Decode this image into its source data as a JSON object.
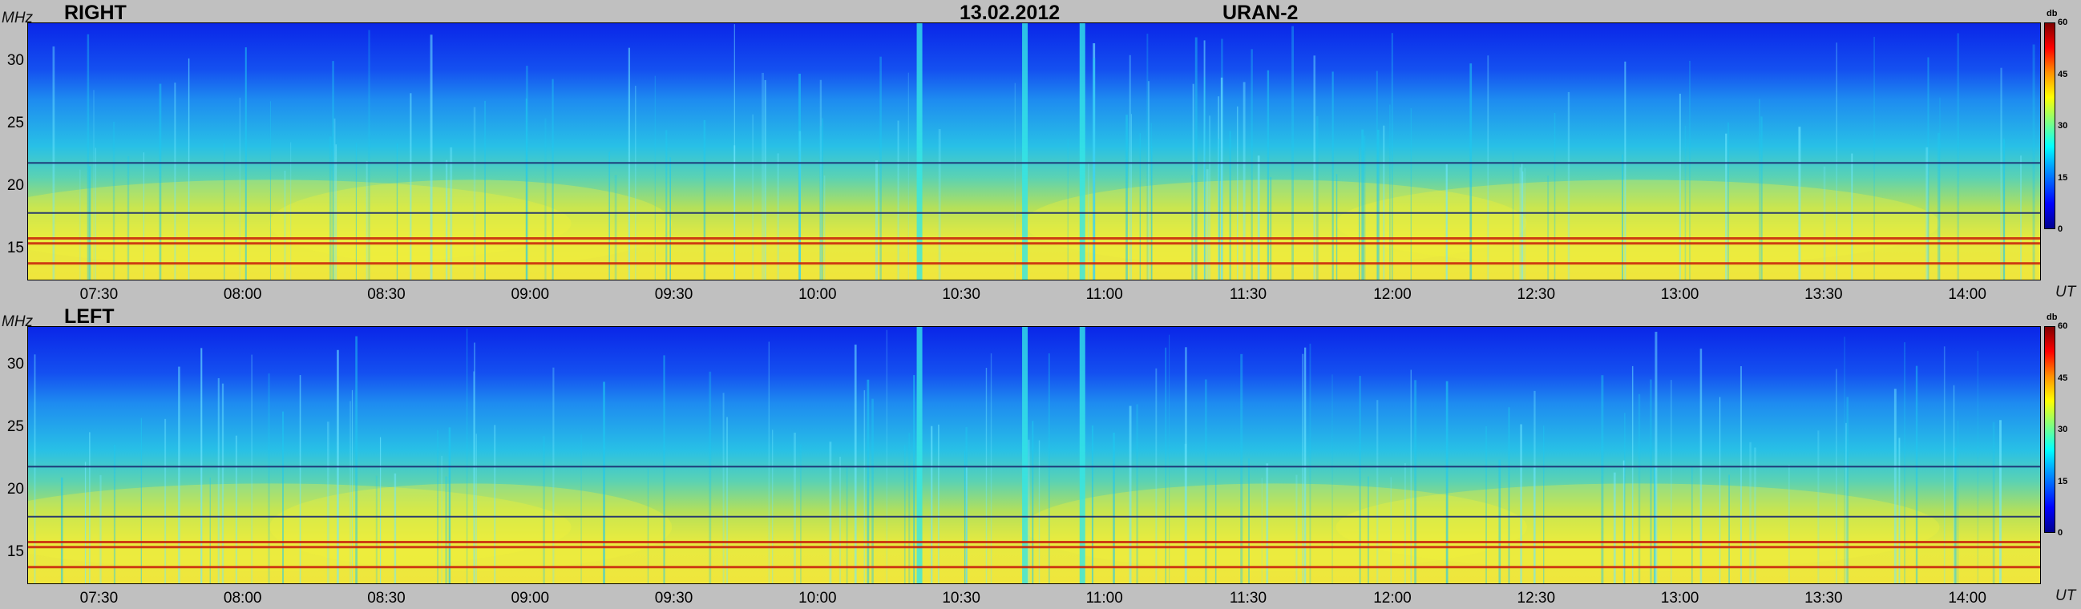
{
  "header": {
    "date": "13.02.2012",
    "instrument": "URAN-2"
  },
  "colors": {
    "background": "#c0c0c0",
    "low": "#0a2cf0",
    "mid": "#1ec8f0",
    "high": "#f0f03c",
    "peak": "#c81e0a"
  },
  "chart_data": [
    {
      "type": "heatmap",
      "title": "RIGHT",
      "ylabel": "MHz",
      "xlabel": "UT",
      "x_ticks": [
        "07:30",
        "08:00",
        "08:30",
        "09:00",
        "09:30",
        "10:00",
        "10:30",
        "11:00",
        "11:30",
        "12:00",
        "12:30",
        "13:00",
        "13:30",
        "14:00"
      ],
      "y_ticks": [
        "30",
        "25",
        "20",
        "15"
      ],
      "xlim": [
        "07:15",
        "14:15"
      ],
      "ylim": [
        12.5,
        33
      ],
      "colorbar": {
        "label": "db",
        "ticks": [
          "60",
          "45",
          "30",
          "15",
          "0"
        ],
        "range": [
          0,
          60
        ]
      },
      "horizontal_lines_mhz": [
        21.8,
        17.8,
        15.8,
        15.4,
        13.8
      ],
      "bright_vertical_bursts_ut": [
        "10:21",
        "10:43",
        "10:55"
      ]
    },
    {
      "type": "heatmap",
      "title": "LEFT",
      "ylabel": "MHz",
      "xlabel": "UT",
      "x_ticks": [
        "07:30",
        "08:00",
        "08:30",
        "09:00",
        "09:30",
        "10:00",
        "10:30",
        "11:00",
        "11:30",
        "12:00",
        "12:30",
        "13:00",
        "13:30",
        "14:00"
      ],
      "y_ticks": [
        "30",
        "25",
        "20",
        "15"
      ],
      "xlim": [
        "07:15",
        "14:15"
      ],
      "ylim": [
        12.5,
        33
      ],
      "colorbar": {
        "label": "db",
        "ticks": [
          "60",
          "45",
          "30",
          "15",
          "0"
        ],
        "range": [
          0,
          60
        ]
      },
      "horizontal_lines_mhz": [
        21.8,
        17.8,
        15.8,
        15.4,
        13.8
      ],
      "bright_vertical_bursts_ut": [
        "10:21",
        "10:43",
        "10:55"
      ]
    }
  ]
}
